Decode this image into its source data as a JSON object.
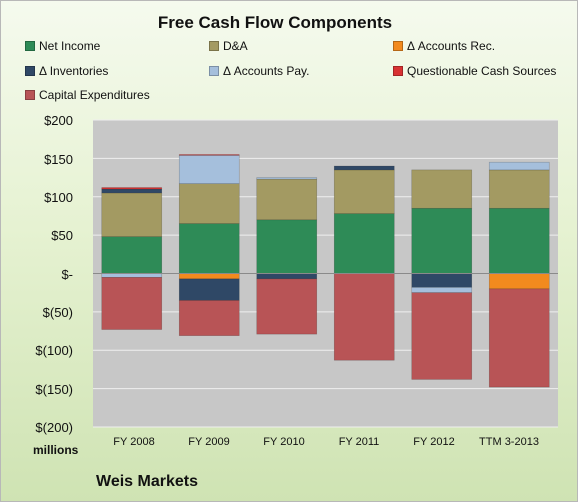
{
  "chart_data": {
    "type": "bar",
    "stacked": true,
    "title": "Free Cash Flow Components",
    "categories": [
      "FY 2008",
      "FY 2009",
      "FY 2010",
      "FY 2011",
      "FY 2012",
      "TTM 3-2013"
    ],
    "ylim": [
      -200,
      200
    ],
    "yticks": [
      "$200",
      "$150",
      "$100",
      "$50",
      "$-",
      "$(50)",
      "$(100)",
      "$(150)",
      "$(200)"
    ],
    "unit_label": "millions",
    "grid": true,
    "legend_position": "top",
    "series": [
      {
        "name": "Net Income",
        "color": "#2e8b57",
        "values": [
          48,
          65,
          70,
          78,
          85,
          85
        ]
      },
      {
        "name": "D&A",
        "color": "#a39a62",
        "values": [
          57,
          52,
          53,
          57,
          50,
          50
        ]
      },
      {
        "name": "Δ Accounts Rec.",
        "color": "#f28a1e",
        "values": [
          0,
          -7,
          0,
          0,
          0,
          -20
        ]
      },
      {
        "name": "Δ Inventories",
        "color": "#2f4866",
        "values": [
          5,
          -28,
          -7,
          5,
          -18,
          0
        ]
      },
      {
        "name": "Δ Accounts Pay.",
        "color": "#a5bfdc",
        "values": [
          -5,
          37,
          2,
          0,
          -7,
          10
        ]
      },
      {
        "name": "Questionable Cash Sources",
        "color": "#d83232",
        "values": [
          2,
          1,
          0,
          0,
          0,
          0
        ]
      },
      {
        "name": "Capital Expenditures",
        "color": "#b85456",
        "values": [
          -68,
          -46,
          -72,
          -113,
          -113,
          -128
        ]
      }
    ]
  },
  "company_name": "Weis Markets"
}
